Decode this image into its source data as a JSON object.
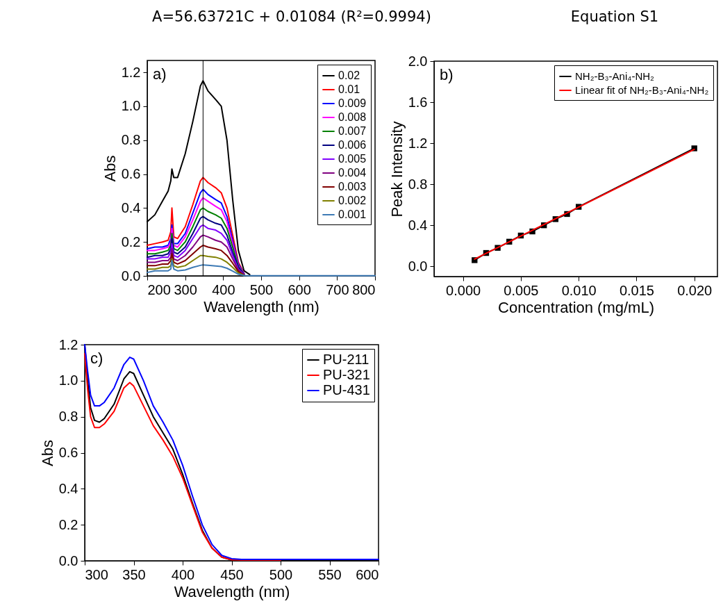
{
  "chart_data": [
    {
      "type": "line",
      "title": "A=56.63721C + 0.01084 (R²=0.9994)",
      "xlabel": "Wavelength (nm)",
      "ylabel": "Abs",
      "annotations": [
        "a)"
      ],
      "legend": "top right",
      "grid": false,
      "x": [
        200,
        220,
        240,
        255,
        262,
        265,
        270,
        280,
        300,
        320,
        340,
        347,
        360,
        380,
        395,
        410,
        425,
        440,
        455,
        470,
        500,
        600,
        700,
        800
      ],
      "xlim": [
        200,
        800
      ],
      "xticks": [
        200,
        300,
        400,
        500,
        600,
        700,
        800
      ],
      "ylim": [
        0,
        1.27
      ],
      "yticks": [
        {
          "value": 0,
          "label": "0.0"
        },
        {
          "value": 0.2,
          "label": "0.2"
        },
        {
          "value": 0.4,
          "label": "0.4"
        },
        {
          "value": 0.6,
          "label": "0.6"
        },
        {
          "value": 0.8,
          "label": "0.8"
        },
        {
          "value": 1,
          "label": "1.0"
        },
        {
          "value": 1.2,
          "label": "1.2"
        }
      ],
      "ref_lines": [
        {
          "axis": "x",
          "value": 347,
          "color": "#000000"
        }
      ],
      "series": [
        {
          "name": "0.02",
          "color": "#000000",
          "values": [
            0.32,
            0.36,
            0.44,
            0.5,
            0.56,
            0.63,
            0.58,
            0.58,
            0.72,
            0.91,
            1.12,
            1.15,
            1.09,
            1.04,
            1.0,
            0.8,
            0.45,
            0.15,
            0.03,
            0.008,
            null,
            null,
            null,
            null
          ]
        },
        {
          "name": "0.01",
          "color": "#ff0000",
          "values": [
            0.18,
            0.19,
            0.2,
            0.21,
            0.26,
            0.4,
            0.23,
            0.22,
            0.29,
            0.42,
            0.56,
            0.58,
            0.55,
            0.52,
            0.49,
            0.4,
            0.24,
            0.08,
            0.015,
            null,
            null,
            null,
            null,
            null
          ]
        },
        {
          "name": "0.009",
          "color": "#0000ff",
          "values": [
            0.16,
            0.17,
            0.17,
            0.18,
            0.22,
            0.3,
            0.19,
            0.19,
            0.25,
            0.37,
            0.49,
            0.51,
            0.48,
            0.45,
            0.43,
            0.35,
            0.21,
            0.07,
            0.013,
            null,
            null,
            null,
            null,
            null
          ]
        },
        {
          "name": "0.008",
          "color": "#ff00ff",
          "values": [
            0.15,
            0.15,
            0.16,
            0.17,
            0.2,
            0.28,
            0.18,
            0.17,
            0.23,
            0.33,
            0.44,
            0.46,
            0.44,
            0.41,
            0.39,
            0.32,
            0.19,
            0.06,
            0.012,
            null,
            null,
            null,
            null,
            null
          ]
        },
        {
          "name": "0.007",
          "color": "#008000",
          "values": [
            0.13,
            0.13,
            0.14,
            0.15,
            0.18,
            0.25,
            0.16,
            0.15,
            0.2,
            0.29,
            0.39,
            0.4,
            0.38,
            0.36,
            0.34,
            0.28,
            0.17,
            0.055,
            0.01,
            null,
            null,
            null,
            null,
            null
          ]
        },
        {
          "name": "0.006",
          "color": "#000080",
          "values": [
            0.11,
            0.12,
            0.12,
            0.13,
            0.16,
            0.22,
            0.14,
            0.13,
            0.17,
            0.25,
            0.34,
            0.35,
            0.33,
            0.31,
            0.3,
            0.24,
            0.14,
            0.05,
            0.009,
            null,
            null,
            null,
            null,
            null
          ]
        },
        {
          "name": "0.005",
          "color": "#8000ff",
          "values": [
            0.1,
            0.1,
            0.11,
            0.11,
            0.14,
            0.19,
            0.12,
            0.11,
            0.15,
            0.22,
            0.29,
            0.3,
            0.28,
            0.27,
            0.25,
            0.21,
            0.12,
            0.04,
            0.008,
            null,
            null,
            null,
            null,
            null
          ]
        },
        {
          "name": "0.004",
          "color": "#800080",
          "values": [
            0.08,
            0.08,
            0.09,
            0.09,
            0.11,
            0.16,
            0.1,
            0.09,
            0.12,
            0.17,
            0.23,
            0.24,
            0.23,
            0.21,
            0.2,
            0.17,
            0.1,
            0.035,
            0.006,
            null,
            null,
            null,
            null,
            null
          ]
        },
        {
          "name": "0.003",
          "color": "#800000",
          "values": [
            0.06,
            0.06,
            0.07,
            0.07,
            0.09,
            0.13,
            0.08,
            0.07,
            0.09,
            0.13,
            0.17,
            0.18,
            0.17,
            0.16,
            0.15,
            0.12,
            0.075,
            0.025,
            0.005,
            null,
            null,
            null,
            null,
            null
          ]
        },
        {
          "name": "0.002",
          "color": "#808000",
          "values": [
            0.04,
            0.04,
            0.05,
            0.05,
            0.06,
            0.1,
            0.06,
            0.05,
            0.06,
            0.09,
            0.12,
            0.12,
            0.115,
            0.11,
            0.1,
            0.08,
            0.05,
            0.017,
            0.003,
            null,
            null,
            null,
            null,
            null
          ]
        },
        {
          "name": "0.001",
          "color": "#3d7ab5",
          "values": [
            0.02,
            0.03,
            0.03,
            0.03,
            0.04,
            0.09,
            0.04,
            0.03,
            0.035,
            0.05,
            0.062,
            0.065,
            0.062,
            0.058,
            0.055,
            0.045,
            0.028,
            0.01,
            0.002,
            0.001,
            0.001,
            0.001,
            0.001,
            0.001
          ]
        }
      ]
    },
    {
      "type": "line",
      "title": "Equation S1",
      "xlabel": "Concentration (mg/mL)",
      "ylabel": "Peak Intensity",
      "annotations": [
        "b)"
      ],
      "legend": "top right",
      "grid": false,
      "xlim": [
        -0.0025,
        0.022
      ],
      "xticks": [
        {
          "value": 0,
          "label": "0.000"
        },
        {
          "value": 0.005,
          "label": "0.005"
        },
        {
          "value": 0.01,
          "label": "0.010"
        },
        {
          "value": 0.015,
          "label": "0.015"
        },
        {
          "value": 0.02,
          "label": "0.020"
        }
      ],
      "ylim": [
        -0.1,
        2
      ],
      "yticks": [
        {
          "value": 0,
          "label": "0.0"
        },
        {
          "value": 0.4,
          "label": "0.4"
        },
        {
          "value": 0.8,
          "label": "0.8"
        },
        {
          "value": 1.2,
          "label": "1.2"
        },
        {
          "value": 1.6,
          "label": "1.6"
        },
        {
          "value": 2,
          "label": "2.0"
        }
      ],
      "series": [
        {
          "name": "NH₂-B₃-Ani₄-NH₂",
          "color": "#000000",
          "marker": "square",
          "x": [
            0.001,
            0.002,
            0.003,
            0.004,
            0.005,
            0.006,
            0.007,
            0.008,
            0.009,
            0.01,
            0.02
          ],
          "values": [
            0.06,
            0.13,
            0.18,
            0.24,
            0.3,
            0.34,
            0.4,
            0.46,
            0.51,
            0.58,
            1.15
          ]
        },
        {
          "name": "Linear fit of NH₂-B₃-Ani₄-NH₂",
          "color": "#ff0000",
          "x": [
            0.001,
            0.02
          ],
          "values": [
            0.07,
            1.14
          ]
        }
      ]
    },
    {
      "type": "line",
      "xlabel": "Wavelength (nm)",
      "ylabel": "Abs",
      "annotations": [
        "c)"
      ],
      "legend": "top right",
      "grid": false,
      "x": [
        300,
        303,
        306,
        310,
        315,
        320,
        330,
        340,
        346,
        350,
        360,
        370,
        380,
        390,
        400,
        410,
        420,
        430,
        440,
        450,
        460,
        500,
        550,
        600
      ],
      "xlim": [
        300,
        600
      ],
      "xticks": [
        300,
        350,
        400,
        450,
        500,
        550,
        600
      ],
      "ylim": [
        0,
        1.2
      ],
      "yticks": [
        {
          "value": 0,
          "label": "0.0"
        },
        {
          "value": 0.2,
          "label": "0.2"
        },
        {
          "value": 0.4,
          "label": "0.4"
        },
        {
          "value": 0.6,
          "label": "0.6"
        },
        {
          "value": 0.8,
          "label": "0.8"
        },
        {
          "value": 1,
          "label": "1.0"
        },
        {
          "value": 1.2,
          "label": "1.2"
        }
      ],
      "series": [
        {
          "name": "PU-211",
          "color": "#000000",
          "values": [
            1.2,
            1.0,
            0.85,
            0.78,
            0.77,
            0.79,
            0.87,
            1.01,
            1.05,
            1.04,
            0.92,
            0.8,
            0.71,
            0.62,
            0.48,
            0.32,
            0.17,
            0.07,
            0.02,
            0.005,
            0.003,
            0.003,
            0.003,
            0.005
          ]
        },
        {
          "name": "PU-321",
          "color": "#ff0000",
          "values": [
            1.15,
            0.95,
            0.8,
            0.74,
            0.74,
            0.76,
            0.83,
            0.96,
            0.99,
            0.97,
            0.86,
            0.75,
            0.67,
            0.58,
            0.46,
            0.31,
            0.16,
            0.07,
            0.02,
            0.006,
            0.004,
            0.004,
            null,
            null
          ]
        },
        {
          "name": "PU-431",
          "color": "#0000ff",
          "values": [
            1.2,
            1.05,
            0.92,
            0.86,
            0.86,
            0.88,
            0.96,
            1.09,
            1.13,
            1.12,
            1.0,
            0.86,
            0.77,
            0.67,
            0.53,
            0.36,
            0.2,
            0.09,
            0.03,
            0.012,
            0.008,
            0.008,
            0.008,
            0.008
          ]
        }
      ]
    }
  ]
}
